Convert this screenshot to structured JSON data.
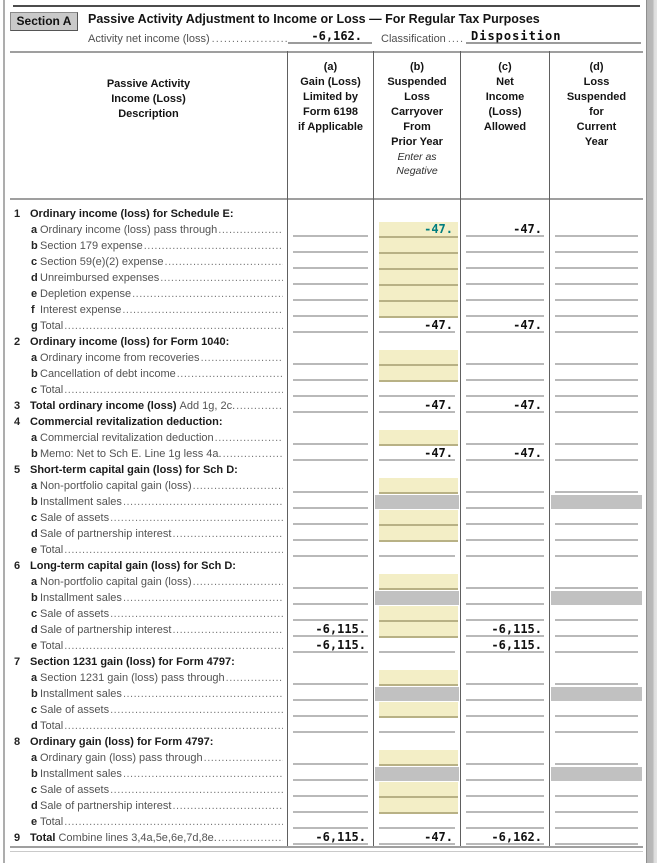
{
  "accent_colors": {
    "input_highlight": "#f3eec6",
    "input_underline": "#b8b185",
    "blocked_fill": "#c1c1c1",
    "entered_value_text": "#007d7f",
    "calculated_value_text": "#101010"
  },
  "leader_dots": "........................................................................................",
  "header": {
    "section_label": "Section A",
    "title": "Passive Activity Adjustment to Income or Loss — For Regular Tax Purposes",
    "activity_label": "Activity net income (loss)",
    "activity_value": "-6,162.",
    "classification_label": "Classification",
    "classification_value": "Disposition"
  },
  "table": {
    "header": [
      {
        "id": "desc",
        "lines": [
          "Passive Activity",
          "Income (Loss)",
          "Description"
        ]
      },
      {
        "id": "a",
        "lines": [
          "(a)",
          "Gain (Loss)",
          "Limited by",
          "Form 6198",
          "if Applicable"
        ]
      },
      {
        "id": "b",
        "lines": [
          "(b)",
          "Suspended",
          "Loss",
          "Carryover",
          "From",
          "Prior Year"
        ],
        "note": [
          "Enter as",
          "Negative"
        ]
      },
      {
        "id": "c",
        "lines": [
          "(c)",
          "Net",
          "Income",
          "(Loss)",
          "Allowed"
        ]
      },
      {
        "id": "d",
        "lines": [
          "(d)",
          "Loss",
          "Suspended",
          "for",
          "Current",
          "Year"
        ]
      }
    ],
    "rows": [
      {
        "id": "1",
        "t": "section",
        "n": "1",
        "b": "Ordinary income (loss) for Schedule E:"
      },
      {
        "id": "1a",
        "t": "item",
        "n": "a",
        "l": "Ordinary income (loss) pass through",
        "dots": true,
        "fb": "y",
        "vb": "-47.",
        "tealb": true,
        "vc": "-47."
      },
      {
        "id": "1b",
        "t": "item",
        "n": "b",
        "l": "Section 179 expense",
        "dots": true,
        "fb": "y"
      },
      {
        "id": "1c",
        "t": "item",
        "n": "c",
        "l": "Section 59(e)(2) expense",
        "dots": true,
        "fb": "y"
      },
      {
        "id": "1d",
        "t": "item",
        "n": "d",
        "l": "Unreimbursed expenses",
        "dots": true,
        "fb": "y"
      },
      {
        "id": "1e",
        "t": "item",
        "n": "e",
        "l": "Depletion expense",
        "dots": true,
        "fb": "y"
      },
      {
        "id": "1f",
        "t": "item",
        "n": "f",
        "l": "Interest expense",
        "dots": true,
        "fb": "y"
      },
      {
        "id": "1g",
        "t": "item",
        "n": "g",
        "l": "Total",
        "dots": true,
        "vb": "-47.",
        "vc": "-47."
      },
      {
        "id": "2",
        "t": "section",
        "n": "2",
        "b": "Ordinary income (loss) for Form 1040:"
      },
      {
        "id": "2a",
        "t": "item",
        "n": "a",
        "l": "Ordinary income from recoveries",
        "dots": true,
        "fb": "y"
      },
      {
        "id": "2b",
        "t": "item",
        "n": "b",
        "l": "Cancellation of debt income",
        "dots": true,
        "fb": "y"
      },
      {
        "id": "2c",
        "t": "item",
        "n": "c",
        "l": "Total",
        "dots": true
      },
      {
        "id": "3",
        "t": "num",
        "n": "3",
        "b": "Total ordinary income (loss)",
        "l": "Add 1g, 2c.",
        "dots": true,
        "vb": "-47.",
        "vc": "-47."
      },
      {
        "id": "4",
        "t": "section",
        "n": "4",
        "b": "Commercial revitalization deduction:"
      },
      {
        "id": "4a",
        "t": "item",
        "n": "a",
        "l": "Commercial revitalization deduction",
        "dots": true,
        "fb": "y"
      },
      {
        "id": "4b",
        "t": "item",
        "n": "b",
        "l": "Memo: Net to Sch E.  Line 1g less 4a.",
        "dots": true,
        "vb": "-47.",
        "vc": "-47."
      },
      {
        "id": "5",
        "t": "section",
        "n": "5",
        "b": "Short-term capital gain (loss) for Sch D:"
      },
      {
        "id": "5a",
        "t": "item",
        "n": "a",
        "l": "Non-portfolio capital gain (loss)",
        "dots": true,
        "fb": "y"
      },
      {
        "id": "5b",
        "t": "item",
        "n": "b",
        "l": "Installment sales",
        "dots": true,
        "fb": "g",
        "fd": "g"
      },
      {
        "id": "5c",
        "t": "item",
        "n": "c",
        "l": "Sale of assets",
        "dots": true,
        "fb": "y"
      },
      {
        "id": "5d",
        "t": "item",
        "n": "d",
        "l": "Sale of partnership interest",
        "dots": true,
        "fb": "y"
      },
      {
        "id": "5e",
        "t": "item",
        "n": "e",
        "l": "Total",
        "dots": true
      },
      {
        "id": "6",
        "t": "section",
        "n": "6",
        "b": "Long-term capital gain (loss) for Sch D:"
      },
      {
        "id": "6a",
        "t": "item",
        "n": "a",
        "l": "Non-portfolio capital gain (loss)",
        "dots": true,
        "fb": "y"
      },
      {
        "id": "6b",
        "t": "item",
        "n": "b",
        "l": "Installment sales",
        "dots": true,
        "fb": "g",
        "fd": "g"
      },
      {
        "id": "6c",
        "t": "item",
        "n": "c",
        "l": "Sale of assets",
        "dots": true,
        "fb": "y"
      },
      {
        "id": "6d",
        "t": "item",
        "n": "d",
        "l": "Sale of partnership interest",
        "dots": true,
        "fb": "y",
        "va": "-6,115.",
        "vc": "-6,115."
      },
      {
        "id": "6e",
        "t": "item",
        "n": "e",
        "l": "Total",
        "dots": true,
        "va": "-6,115.",
        "vc": "-6,115."
      },
      {
        "id": "7",
        "t": "section",
        "n": "7",
        "b": "Section 1231 gain (loss) for Form 4797:"
      },
      {
        "id": "7a",
        "t": "item",
        "n": "a",
        "l": "Section 1231 gain (loss) pass through",
        "dots": true,
        "fb": "y"
      },
      {
        "id": "7b",
        "t": "item",
        "n": "b",
        "l": "Installment sales",
        "dots": true,
        "fb": "g",
        "fd": "g"
      },
      {
        "id": "7c",
        "t": "item",
        "n": "c",
        "l": "Sale of assets",
        "dots": true,
        "fb": "y"
      },
      {
        "id": "7d",
        "t": "item",
        "n": "d",
        "l": "Total",
        "dots": true
      },
      {
        "id": "8",
        "t": "section",
        "n": "8",
        "b": "Ordinary gain (loss) for Form 4797:"
      },
      {
        "id": "8a",
        "t": "item",
        "n": "a",
        "l": "Ordinary gain (loss) pass through",
        "dots": true,
        "fb": "y"
      },
      {
        "id": "8b",
        "t": "item",
        "n": "b",
        "l": "Installment sales",
        "dots": true,
        "fb": "g",
        "fd": "g"
      },
      {
        "id": "8c",
        "t": "item",
        "n": "c",
        "l": "Sale of assets",
        "dots": true,
        "fb": "y"
      },
      {
        "id": "8d",
        "t": "item",
        "n": "d",
        "l": "Sale of partnership interest",
        "dots": true,
        "fb": "y"
      },
      {
        "id": "8e",
        "t": "item",
        "n": "e",
        "l": "Total",
        "dots": true
      },
      {
        "id": "9",
        "t": "num",
        "n": "9",
        "b": "Total",
        "l": "Combine lines 3,4a,5e,6e,7d,8e.",
        "dots": true,
        "va": "-6,115.",
        "vb": "-47.",
        "vc": "-6,162."
      }
    ]
  }
}
